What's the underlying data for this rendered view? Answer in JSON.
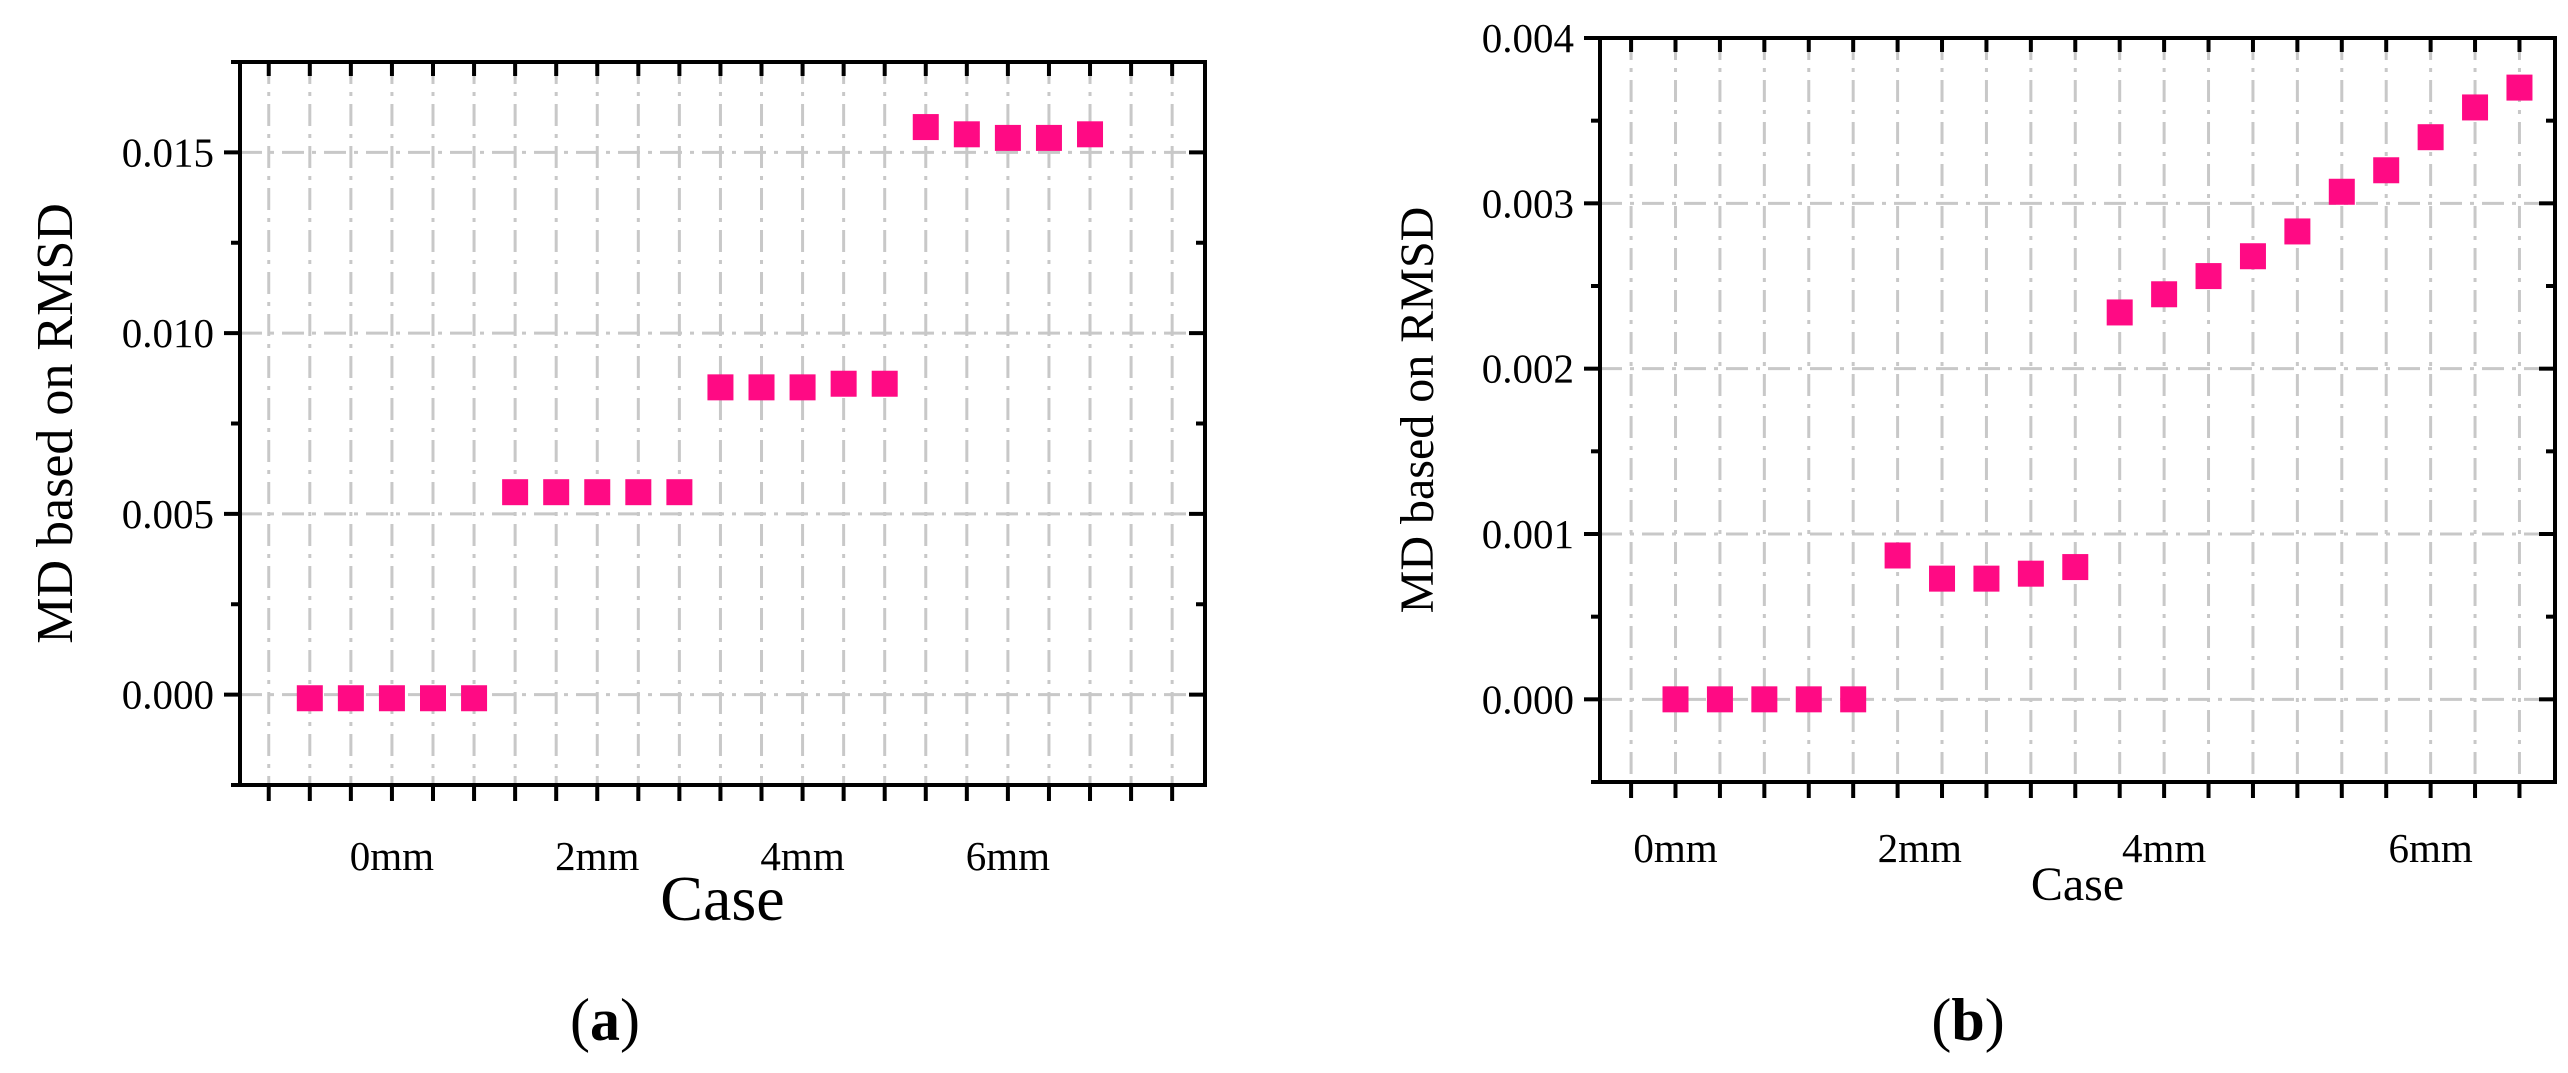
{
  "marker_color": "#ff0a84",
  "chart_data": [
    {
      "type": "scatter",
      "panel_label": "a",
      "xlabel": "Case",
      "ylabel": "MD based on RMSD",
      "ylim": [
        -0.0025,
        0.0175
      ],
      "yticks": [
        "0.000",
        "0.005",
        "0.010",
        "0.015"
      ],
      "ytick_values": [
        0.0,
        0.005,
        0.01,
        0.015
      ],
      "xlim": [
        -1.7,
        21.8
      ],
      "x_categories": [
        {
          "label": "0mm",
          "x": 2
        },
        {
          "label": "2mm",
          "x": 7
        },
        {
          "label": "4mm",
          "x": 12
        },
        {
          "label": "6mm",
          "x": 17
        }
      ],
      "grid": true,
      "series": [
        {
          "x": [
            0,
            1,
            2,
            3,
            4,
            5,
            6,
            7,
            8,
            9,
            10,
            11,
            12,
            13,
            14,
            15,
            16,
            17,
            18,
            19
          ],
          "y": [
            -0.0001,
            -0.0001,
            -0.0001,
            -0.0001,
            -0.0001,
            0.0056,
            0.0056,
            0.0056,
            0.0056,
            0.0056,
            0.0085,
            0.0085,
            0.0085,
            0.0086,
            0.0086,
            0.0157,
            0.0155,
            0.0154,
            0.0154,
            0.0155
          ]
        }
      ]
    },
    {
      "type": "scatter",
      "panel_label": "b",
      "xlabel": "Case",
      "ylabel": "MD based on RMSD",
      "ylim": [
        -0.0005,
        0.004
      ],
      "yticks": [
        "0.000",
        "0.001",
        "0.002",
        "0.003",
        "0.004"
      ],
      "ytick_values": [
        0.0,
        0.001,
        0.002,
        0.003,
        0.004
      ],
      "xlim": [
        -1.7,
        19.8
      ],
      "x_categories": [
        {
          "label": "0mm",
          "x": 0
        },
        {
          "label": "2mm",
          "x": 5.5
        },
        {
          "label": "4mm",
          "x": 11
        },
        {
          "label": "6mm",
          "x": 17
        }
      ],
      "grid": true,
      "series": [
        {
          "x": [
            0,
            1,
            2,
            3,
            4,
            5,
            6,
            7,
            8,
            9,
            10,
            11,
            12,
            13,
            14,
            15,
            16,
            17,
            18,
            19
          ],
          "y": [
            0.0,
            0.0,
            0.0,
            0.0,
            0.0,
            0.00087,
            0.00073,
            0.00073,
            0.00076,
            0.0008,
            0.00234,
            0.00245,
            0.00256,
            0.00268,
            0.00283,
            0.00307,
            0.0032,
            0.0034,
            0.00358,
            0.0037
          ]
        }
      ]
    }
  ]
}
